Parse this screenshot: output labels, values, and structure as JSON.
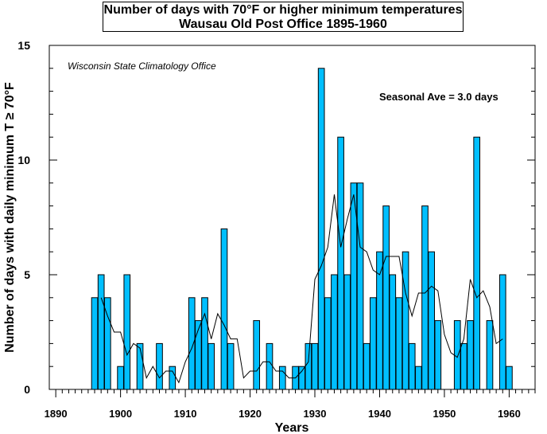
{
  "chart_data": {
    "type": "bar",
    "title": "Number of days with 70°F or higher minimum temperatures",
    "subtitle": "Wausau Old Post Office 1895-1960",
    "xlabel": "Years",
    "ylabel": "Number of days with daily minimum T ≥ 70°F",
    "source_note": "Wisconsin State Climatology Office",
    "annotation": "Seasonal Ave = 3.0 days",
    "xlim": [
      1889,
      1964
    ],
    "ylim": [
      0,
      15
    ],
    "x_ticks": [
      1890,
      1900,
      1910,
      1920,
      1930,
      1940,
      1950,
      1960
    ],
    "y_ticks": [
      0,
      5,
      10,
      15
    ],
    "bar_color": "#00bfff",
    "grid": false,
    "series": [
      {
        "type": "bar",
        "x": [
          1896,
          1897,
          1898,
          1899,
          1900,
          1901,
          1902,
          1903,
          1904,
          1905,
          1906,
          1907,
          1908,
          1909,
          1910,
          1911,
          1912,
          1913,
          1914,
          1915,
          1916,
          1917,
          1918,
          1919,
          1920,
          1921,
          1922,
          1923,
          1924,
          1925,
          1926,
          1927,
          1928,
          1929,
          1930,
          1931,
          1932,
          1933,
          1934,
          1935,
          1936,
          1937,
          1938,
          1939,
          1940,
          1941,
          1942,
          1943,
          1944,
          1945,
          1946,
          1947,
          1948,
          1949,
          1950,
          1951,
          1952,
          1953,
          1954,
          1955,
          1956,
          1957,
          1958,
          1959,
          1960
        ],
        "values": [
          4,
          5,
          4,
          0,
          1,
          5,
          0,
          2,
          0,
          0,
          2,
          0,
          1,
          0,
          0,
          4,
          3,
          4,
          2,
          0,
          7,
          2,
          0,
          0,
          0,
          3,
          0,
          2,
          0,
          1,
          0,
          1,
          1,
          2,
          2,
          14,
          4,
          5,
          11,
          5,
          9,
          9,
          2,
          4,
          6,
          8,
          5,
          4,
          6,
          2,
          1,
          8,
          6,
          3,
          0,
          0,
          3,
          2,
          3,
          11,
          0,
          3,
          0,
          5,
          1
        ]
      },
      {
        "type": "line",
        "x": [
          1897,
          1898,
          1899,
          1900,
          1901,
          1902,
          1903,
          1904,
          1905,
          1906,
          1907,
          1908,
          1909,
          1910,
          1911,
          1912,
          1913,
          1914,
          1915,
          1916,
          1917,
          1918,
          1919,
          1920,
          1921,
          1922,
          1923,
          1924,
          1925,
          1926,
          1927,
          1928,
          1929,
          1930,
          1931,
          1932,
          1933,
          1934,
          1935,
          1936,
          1937,
          1938,
          1939,
          1940,
          1941,
          1942,
          1943,
          1944,
          1945,
          1946,
          1947,
          1948,
          1949,
          1950,
          1951,
          1952,
          1953,
          1954,
          1955,
          1956,
          1957,
          1958,
          1959
        ],
        "values": [
          4.0,
          3.2,
          2.5,
          2.5,
          1.5,
          2.0,
          1.8,
          0.5,
          1.0,
          0.5,
          0.8,
          0.8,
          0.3,
          1.2,
          1.8,
          2.6,
          3.3,
          2.2,
          3.3,
          2.8,
          2.2,
          2.2,
          0.5,
          0.8,
          0.8,
          1.2,
          1.2,
          0.8,
          0.8,
          0.5,
          0.5,
          0.8,
          1.2,
          4.8,
          5.4,
          6.2,
          8.5,
          6.2,
          7.4,
          8.5,
          6.2,
          6.0,
          5.2,
          5.0,
          5.8,
          5.8,
          5.8,
          4.2,
          3.2,
          4.2,
          4.2,
          4.5,
          4.3,
          2.4,
          1.6,
          1.4,
          2.2,
          4.8,
          4.0,
          4.3,
          3.6,
          2.0,
          2.2
        ]
      }
    ]
  }
}
